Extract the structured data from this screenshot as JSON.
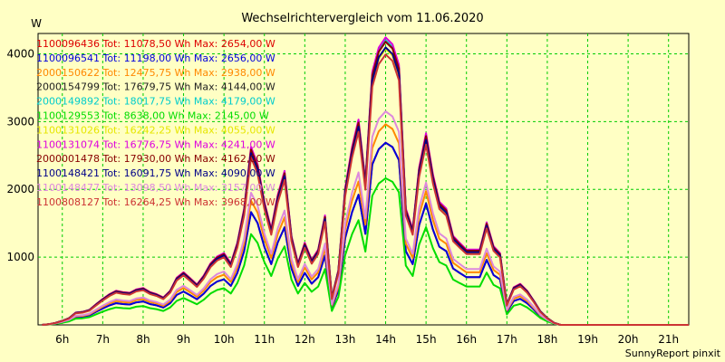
{
  "chart_data": {
    "type": "line",
    "title": "Wechselrichtervergleich vom 11.06.2020",
    "ylabel": "W",
    "xlabel": "",
    "footer": "SunnyReport pinxit",
    "ylim": [
      0,
      4300
    ],
    "xlim": [
      5.4,
      21.5
    ],
    "yticks": [
      1000,
      2000,
      3000,
      4000
    ],
    "xticks": [
      6,
      7,
      8,
      9,
      10,
      11,
      12,
      13,
      14,
      15,
      16,
      17,
      18,
      19,
      20,
      21
    ],
    "xtick_labels": [
      "6h",
      "7h",
      "8h",
      "9h",
      "10h",
      "11h",
      "12h",
      "13h",
      "14h",
      "15h",
      "16h",
      "17h",
      "18h",
      "19h",
      "20h",
      "21h"
    ],
    "x": [
      5.5,
      5.67,
      5.83,
      6.0,
      6.17,
      6.33,
      6.5,
      6.67,
      6.83,
      7.0,
      7.17,
      7.33,
      7.5,
      7.67,
      7.83,
      8.0,
      8.17,
      8.33,
      8.5,
      8.67,
      8.83,
      9.0,
      9.17,
      9.33,
      9.5,
      9.67,
      9.83,
      10.0,
      10.17,
      10.33,
      10.5,
      10.67,
      10.83,
      11.0,
      11.17,
      11.33,
      11.5,
      11.67,
      11.83,
      12.0,
      12.17,
      12.33,
      12.5,
      12.67,
      12.83,
      13.0,
      13.17,
      13.33,
      13.5,
      13.67,
      13.83,
      14.0,
      14.17,
      14.33,
      14.5,
      14.67,
      14.83,
      15.0,
      15.17,
      15.33,
      15.5,
      15.67,
      15.83,
      16.0,
      16.17,
      16.33,
      16.5,
      16.67,
      16.83,
      17.0,
      17.17,
      17.33,
      17.5,
      17.67,
      17.83,
      18.0,
      18.17,
      18.33,
      18.5,
      18.67,
      18.83,
      19.0,
      19.17,
      19.33,
      19.5,
      19.67,
      19.83,
      20.0,
      20.17,
      20.33,
      20.5,
      20.67,
      20.83,
      21.0,
      21.17,
      21.33,
      21.5
    ],
    "series": [
      {
        "name": "1100096436",
        "label": "1100096436 Tot: 11078,50 Wh Max: 2654,00 W",
        "color": "#dd0000",
        "scale": 0.64
      },
      {
        "name": "1100096541",
        "label": "1100096541 Tot: 11198,00 Wh Max: 2656,00 W",
        "color": "#0000dd",
        "scale": 0.64
      },
      {
        "name": "2000150622",
        "label": "2000150622 Tot: 12475,75 Wh Max: 2938,00 W",
        "color": "#ff8800",
        "scale": 0.705
      },
      {
        "name": "2000154799",
        "label": "2000154799 Tot: 17679,75 Wh Max: 4144,00 W",
        "color": "#222222",
        "scale": 0.995
      },
      {
        "name": "2000149892",
        "label": "2000149892 Tot: 18017,75 Wh Max: 4179,00 W",
        "color": "#00cccc",
        "scale": 1.0
      },
      {
        "name": "1100129553",
        "label": "1100129553 Tot: 8638,00 Wh Max: 2145,00 W",
        "color": "#00dd00",
        "scale": 0.515
      },
      {
        "name": "1100131026",
        "label": "1100131026 Tot: 16242,25 Wh Max: 4055,00 W",
        "color": "#e6e600",
        "scale": 0.97
      },
      {
        "name": "1100131074",
        "label": "1100131074 Tot: 16776,75 Wh Max: 4241,00 W",
        "color": "#dd00dd",
        "scale": 1.01
      },
      {
        "name": "2000001478",
        "label": "2000001478 Tot: 17930,00 Wh Max: 4162,00 W",
        "color": "#880000",
        "scale": 0.995
      },
      {
        "name": "1100148421",
        "label": "1100148421 Tot: 16091,75 Wh Max: 4090,00 W",
        "color": "#000088",
        "scale": 0.975
      },
      {
        "name": "1100148477",
        "label": "1100148477 Tot: 13098,50 Wh Max: 3157,00 W",
        "color": "#dd88dd",
        "scale": 0.75
      },
      {
        "name": "1100808127",
        "label": "1100808127 Tot: 16264,25 Wh Max: 3968,00 W",
        "color": "#cc3333",
        "scale": 0.95
      }
    ],
    "base_values": [
      0,
      10,
      30,
      60,
      100,
      180,
      190,
      220,
      300,
      380,
      450,
      500,
      480,
      470,
      520,
      540,
      480,
      450,
      400,
      500,
      690,
      770,
      680,
      590,
      720,
      900,
      1000,
      1050,
      900,
      1200,
      1700,
      2600,
      2350,
      1800,
      1400,
      1900,
      2250,
      1300,
      900,
      1200,
      950,
      1100,
      1600,
      400,
      800,
      2000,
      2600,
      3000,
      2100,
      3700,
      4050,
      4200,
      4100,
      3800,
      1700,
      1400,
      2300,
      2800,
      2200,
      1800,
      1700,
      1300,
      1200,
      1100,
      1100,
      1100,
      1500,
      1150,
      1050,
      300,
      550,
      600,
      500,
      350,
      200,
      100,
      30,
      0,
      0,
      0,
      0,
      0,
      0,
      0,
      0,
      0,
      0,
      0,
      0,
      0,
      0,
      0,
      0,
      0,
      0,
      0,
      0
    ],
    "grid": true,
    "legend_position": "top-left"
  }
}
